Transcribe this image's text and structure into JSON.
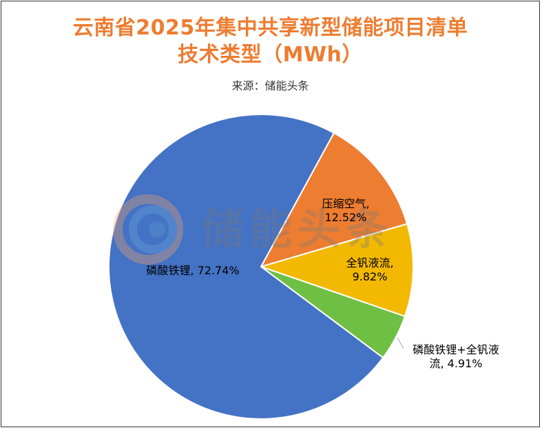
{
  "title_line1": "云南省2025年集中共享新型储能项目清单",
  "title_line2": "技术类型（MWh）",
  "subtitle": "来源：储能头条",
  "watermark": "储能头条",
  "chart_data": {
    "type": "pie",
    "title": "云南省2025年集中共享新型储能项目清单技术类型（MWh）",
    "subtitle": "来源：储能头条",
    "start_angle_deg": 28.6,
    "slices": [
      {
        "label": "压缩空气",
        "value": 12.52,
        "value_text": "12.52%",
        "color": "#ed7d31",
        "label_lines": [
          "压缩空气,",
          "12.52%"
        ]
      },
      {
        "label": "全钒液流",
        "value": 9.82,
        "value_text": "9.82%",
        "color": "#f2b900",
        "label_lines": [
          "全钒液流,",
          "9.82%"
        ]
      },
      {
        "label": "磷酸铁锂+全钒液流",
        "value": 4.91,
        "value_text": "4.91%",
        "color": "#70bf45",
        "label_lines": [
          "磷酸铁锂+全钒液",
          "流, 4.91%"
        ]
      },
      {
        "label": "磷酸铁锂",
        "value": 72.74,
        "value_text": "72.74%",
        "color": "#4472c4",
        "label_lines": [
          "磷酸铁锂, 72.74%"
        ]
      }
    ]
  }
}
